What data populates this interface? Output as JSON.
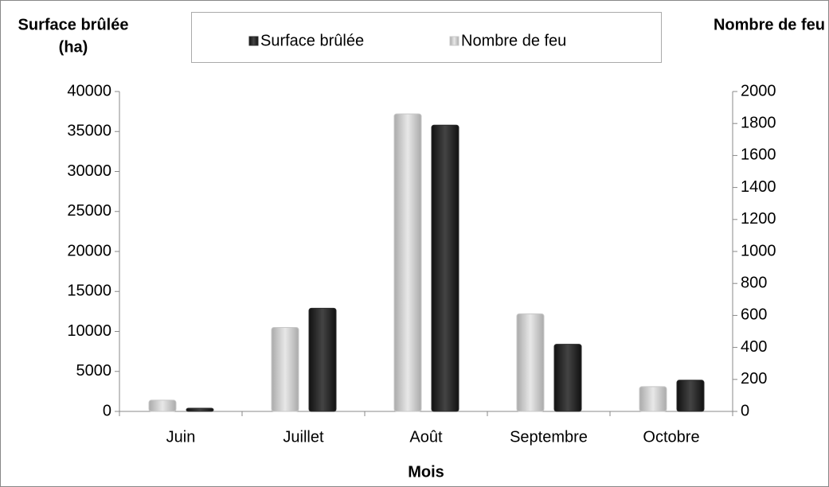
{
  "chart_data": {
    "type": "bar",
    "y_label_lines": [
      "Surface brûlée",
      "(ha)"
    ],
    "y2_label": "Nombre de feu",
    "x_label": "Mois",
    "categories": [
      "Juin",
      "Juillet",
      "Août",
      "Septembre",
      "Octobre"
    ],
    "series": [
      {
        "name": "Surface brûlée",
        "color": "#2b2b2b",
        "axis": "y",
        "values": [
          400,
          12900,
          35800,
          8400,
          3900
        ]
      },
      {
        "name": "Nombre de feu",
        "color": "#c8c8c8",
        "axis": "y2",
        "values": [
          70,
          525,
          1860,
          610,
          155
        ]
      }
    ],
    "ylim": [
      0,
      40000
    ],
    "yticks": [
      0,
      5000,
      10000,
      15000,
      20000,
      25000,
      30000,
      35000,
      40000
    ],
    "y2lim": [
      0,
      2000
    ],
    "y2ticks": [
      0,
      200,
      400,
      600,
      800,
      1000,
      1200,
      1400,
      1600,
      1800,
      2000
    ],
    "grid": false,
    "legend": "top"
  }
}
